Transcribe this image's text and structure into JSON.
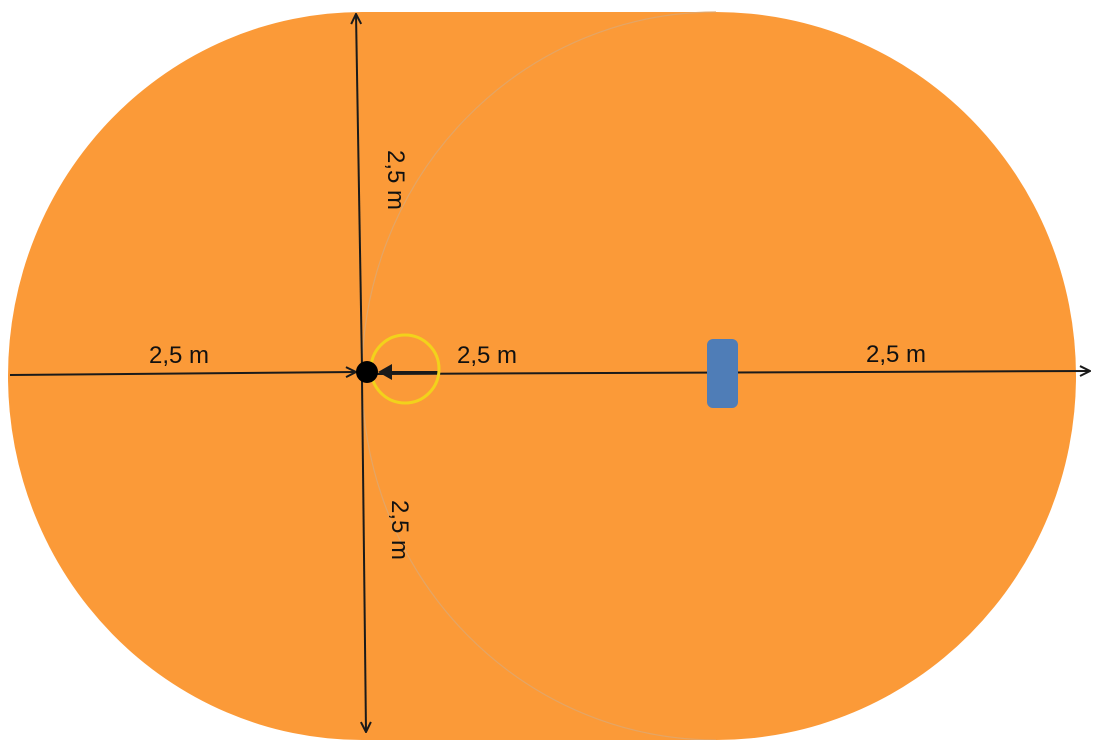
{
  "diagram": {
    "labels": {
      "left_horizontal": "2,5 m",
      "center_right": "2,5 m",
      "far_right": "2,5 m",
      "top_vertical": "2,5 m",
      "bottom_vertical": "2,5 m"
    },
    "colors": {
      "field": "#FB9A38",
      "axis": "#1a1a1a",
      "center_point": "#000000",
      "small_circle": "#F2D21B",
      "marker": "#4F7DB7",
      "faint_arc": "#E0A66C"
    }
  }
}
